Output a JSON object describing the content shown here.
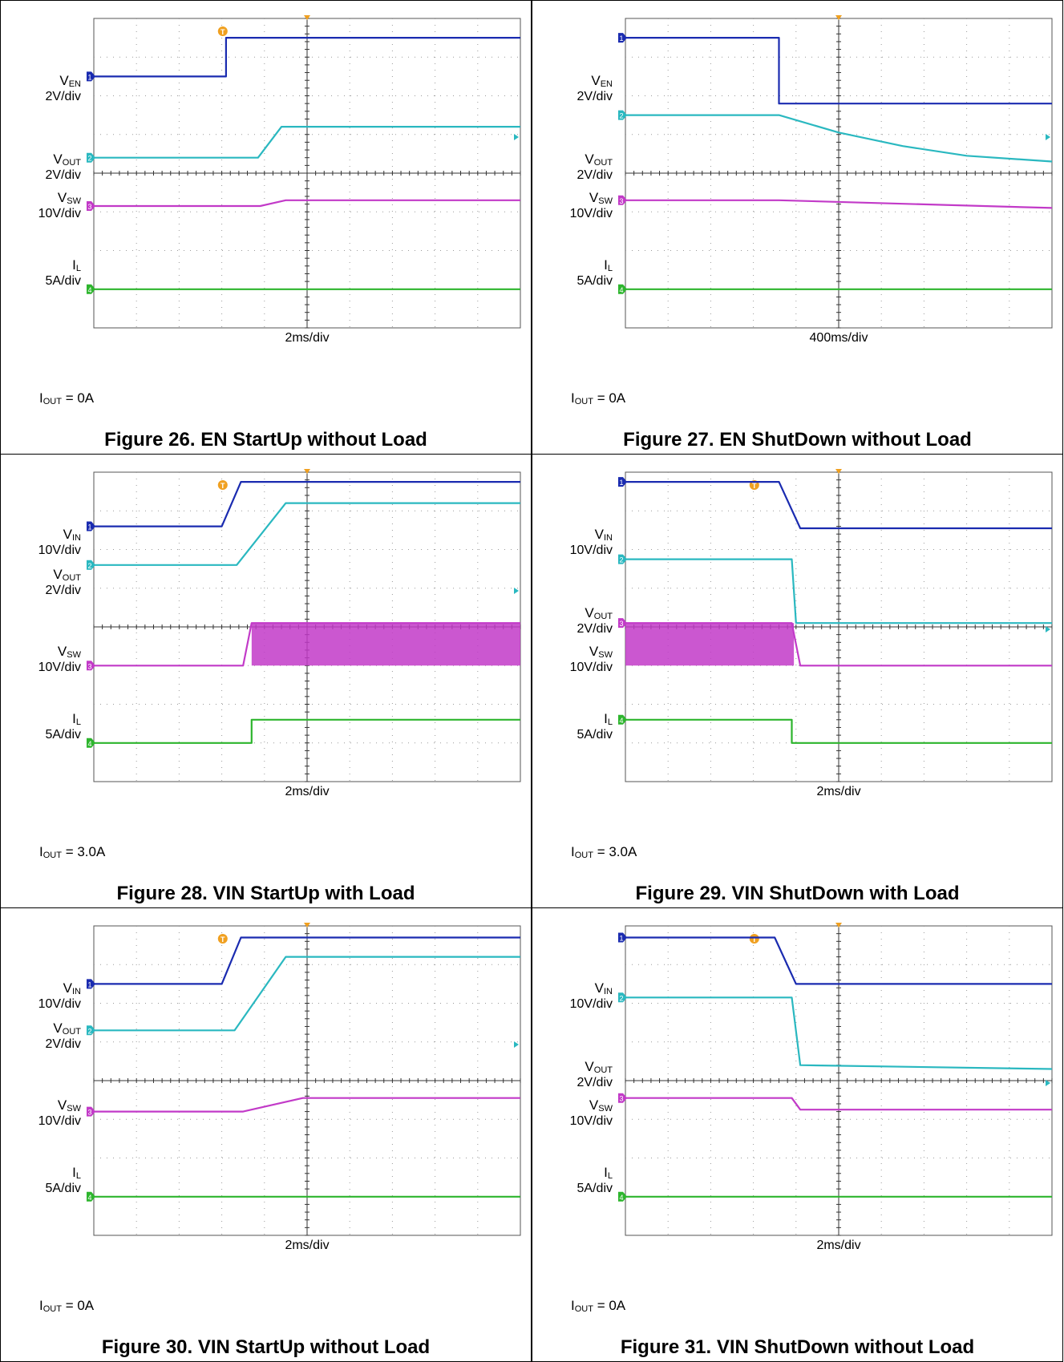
{
  "figures": [
    {
      "caption": "Figure 26. EN StartUp without Load",
      "time_div": "2ms/div",
      "condition": {
        "symbol": "I",
        "sub": "OUT",
        "value": " = 0A"
      },
      "channels": [
        {
          "symbol": "V",
          "sub": "EN",
          "scale": "2V/div",
          "color": "#1a2bb0",
          "marker": "1"
        },
        {
          "symbol": "V",
          "sub": "OUT",
          "scale": "2V/div",
          "color": "#2ab8c0",
          "marker": "2"
        },
        {
          "symbol": "V",
          "sub": "SW",
          "scale": "10V/div",
          "color": "#c23ac8",
          "marker": "3"
        },
        {
          "symbol": "I",
          "sub": "L",
          "scale": "5A/div",
          "color": "#2db52d",
          "marker": "4"
        }
      ]
    },
    {
      "caption": "Figure 27. EN ShutDown without Load",
      "time_div": "400ms/div",
      "condition": {
        "symbol": "I",
        "sub": "OUT",
        "value": " = 0A"
      },
      "channels": [
        {
          "symbol": "V",
          "sub": "EN",
          "scale": "2V/div",
          "color": "#1a2bb0",
          "marker": "1"
        },
        {
          "symbol": "V",
          "sub": "OUT",
          "scale": "2V/div",
          "color": "#2ab8c0",
          "marker": "2"
        },
        {
          "symbol": "V",
          "sub": "SW",
          "scale": "10V/div",
          "color": "#c23ac8",
          "marker": "3"
        },
        {
          "symbol": "I",
          "sub": "L",
          "scale": "5A/div",
          "color": "#2db52d",
          "marker": "4"
        }
      ]
    },
    {
      "caption": "Figure 28. VIN StartUp with Load",
      "time_div": "2ms/div",
      "condition": {
        "symbol": "I",
        "sub": "OUT",
        "value": " = 3.0A"
      },
      "channels": [
        {
          "symbol": "V",
          "sub": "IN",
          "scale": "10V/div",
          "color": "#1a2bb0",
          "marker": "1"
        },
        {
          "symbol": "V",
          "sub": "OUT",
          "scale": "2V/div",
          "color": "#2ab8c0",
          "marker": "2"
        },
        {
          "symbol": "V",
          "sub": "SW",
          "scale": "10V/div",
          "color": "#c23ac8",
          "marker": "3"
        },
        {
          "symbol": "I",
          "sub": "L",
          "scale": "5A/div",
          "color": "#2db52d",
          "marker": "4"
        }
      ]
    },
    {
      "caption": "Figure 29. VIN ShutDown with Load",
      "time_div": "2ms/div",
      "condition": {
        "symbol": "I",
        "sub": "OUT",
        "value": " = 3.0A"
      },
      "channels": [
        {
          "symbol": "V",
          "sub": "IN",
          "scale": "10V/div",
          "color": "#1a2bb0",
          "marker": "1"
        },
        {
          "symbol": "V",
          "sub": "OUT",
          "scale": "2V/div",
          "color": "#2ab8c0",
          "marker": "2"
        },
        {
          "symbol": "V",
          "sub": "SW",
          "scale": "10V/div",
          "color": "#c23ac8",
          "marker": "3"
        },
        {
          "symbol": "I",
          "sub": "L",
          "scale": "5A/div",
          "color": "#2db52d",
          "marker": "4"
        }
      ]
    },
    {
      "caption": "Figure 30. VIN StartUp without Load",
      "time_div": "2ms/div",
      "condition": {
        "symbol": "I",
        "sub": "OUT",
        "value": " = 0A"
      },
      "channels": [
        {
          "symbol": "V",
          "sub": "IN",
          "scale": "10V/div",
          "color": "#1a2bb0",
          "marker": "1"
        },
        {
          "symbol": "V",
          "sub": "OUT",
          "scale": "2V/div",
          "color": "#2ab8c0",
          "marker": "2"
        },
        {
          "symbol": "V",
          "sub": "SW",
          "scale": "10V/div",
          "color": "#c23ac8",
          "marker": "3"
        },
        {
          "symbol": "I",
          "sub": "L",
          "scale": "5A/div",
          "color": "#2db52d",
          "marker": "4"
        }
      ]
    },
    {
      "caption": "Figure 31. VIN ShutDown without Load",
      "time_div": "2ms/div",
      "condition": {
        "symbol": "I",
        "sub": "OUT",
        "value": " = 0A"
      },
      "channels": [
        {
          "symbol": "V",
          "sub": "IN",
          "scale": "10V/div",
          "color": "#1a2bb0",
          "marker": "1"
        },
        {
          "symbol": "V",
          "sub": "OUT",
          "scale": "2V/div",
          "color": "#2ab8c0",
          "marker": "2"
        },
        {
          "symbol": "V",
          "sub": "SW",
          "scale": "10V/div",
          "color": "#c23ac8",
          "marker": "3"
        },
        {
          "symbol": "I",
          "sub": "L",
          "scale": "5A/div",
          "color": "#2db52d",
          "marker": "4"
        }
      ]
    }
  ],
  "chart_data": [
    {
      "type": "line",
      "title": "Figure 26. EN StartUp without Load",
      "xlabel": "2ms/div",
      "x_divisions": 10,
      "y_divisions": 8,
      "grid": true,
      "series": [
        {
          "name": "VEN",
          "points": [
            [
              0,
              6.5
            ],
            [
              3.1,
              6.5
            ],
            [
              3.1,
              7.5
            ],
            [
              10,
              7.5
            ]
          ]
        },
        {
          "name": "VOUT",
          "points": [
            [
              0,
              4.4
            ],
            [
              3.85,
              4.4
            ],
            [
              4.4,
              5.2
            ],
            [
              10,
              5.2
            ]
          ]
        },
        {
          "name": "VSW",
          "points": [
            [
              0,
              3.15
            ],
            [
              3.9,
              3.15
            ],
            [
              4.5,
              3.3
            ],
            [
              10,
              3.3
            ]
          ]
        },
        {
          "name": "IL",
          "points": [
            [
              0,
              1.0
            ],
            [
              10,
              1.0
            ]
          ]
        }
      ]
    },
    {
      "type": "line",
      "title": "Figure 27. EN ShutDown without Load",
      "xlabel": "400ms/div",
      "x_divisions": 10,
      "y_divisions": 8,
      "grid": true,
      "series": [
        {
          "name": "VEN",
          "points": [
            [
              0,
              7.5
            ],
            [
              3.6,
              7.5
            ],
            [
              3.6,
              5.8
            ],
            [
              10,
              5.8
            ]
          ]
        },
        {
          "name": "VOUT",
          "points": [
            [
              0,
              5.5
            ],
            [
              3.6,
              5.5
            ],
            [
              5,
              5.05
            ],
            [
              6.5,
              4.7
            ],
            [
              8,
              4.45
            ],
            [
              10,
              4.3
            ]
          ]
        },
        {
          "name": "VSW",
          "points": [
            [
              0,
              3.3
            ],
            [
              3.6,
              3.3
            ],
            [
              10,
              3.1
            ]
          ]
        },
        {
          "name": "IL",
          "points": [
            [
              0,
              1.0
            ],
            [
              10,
              1.0
            ]
          ]
        }
      ]
    },
    {
      "type": "line",
      "title": "Figure 28. VIN StartUp with Load",
      "xlabel": "2ms/div",
      "x_divisions": 10,
      "y_divisions": 8,
      "grid": true,
      "series": [
        {
          "name": "VIN",
          "points": [
            [
              0,
              6.6
            ],
            [
              3.0,
              6.6
            ],
            [
              3.45,
              7.75
            ],
            [
              10,
              7.75
            ]
          ]
        },
        {
          "name": "VOUT",
          "points": [
            [
              0,
              5.6
            ],
            [
              3.35,
              5.6
            ],
            [
              4.5,
              7.2
            ],
            [
              10,
              7.2
            ]
          ]
        },
        {
          "name": "VSW",
          "points": [
            [
              0,
              3.0
            ],
            [
              3.5,
              3.0
            ],
            [
              3.7,
              4.1
            ],
            [
              10,
              4.1
            ]
          ]
        },
        {
          "name": "IL",
          "points": [
            [
              0,
              1.0
            ],
            [
              3.7,
              1.0
            ],
            [
              3.7,
              1.6
            ],
            [
              10,
              1.6
            ]
          ]
        }
      ]
    },
    {
      "type": "line",
      "title": "Figure 29. VIN ShutDown with Load",
      "xlabel": "2ms/div",
      "x_divisions": 10,
      "y_divisions": 8,
      "grid": true,
      "series": [
        {
          "name": "VIN",
          "points": [
            [
              0,
              7.75
            ],
            [
              3.6,
              7.75
            ],
            [
              4.1,
              6.55
            ],
            [
              10,
              6.55
            ]
          ]
        },
        {
          "name": "VOUT",
          "points": [
            [
              0,
              5.75
            ],
            [
              3.9,
              5.75
            ],
            [
              4.0,
              4.1
            ],
            [
              10,
              4.1
            ]
          ]
        },
        {
          "name": "VSW",
          "points": [
            [
              0,
              4.1
            ],
            [
              3.9,
              4.1
            ],
            [
              4.1,
              3.0
            ],
            [
              10,
              3.0
            ]
          ]
        },
        {
          "name": "IL",
          "points": [
            [
              0,
              1.6
            ],
            [
              3.9,
              1.6
            ],
            [
              3.9,
              1.0
            ],
            [
              10,
              1.0
            ]
          ]
        }
      ]
    },
    {
      "type": "line",
      "title": "Figure 30. VIN StartUp without Load",
      "xlabel": "2ms/div",
      "x_divisions": 10,
      "y_divisions": 8,
      "grid": true,
      "series": [
        {
          "name": "VIN",
          "points": [
            [
              0,
              6.5
            ],
            [
              3.0,
              6.5
            ],
            [
              3.45,
              7.7
            ],
            [
              10,
              7.7
            ]
          ]
        },
        {
          "name": "VOUT",
          "points": [
            [
              0,
              5.3
            ],
            [
              3.3,
              5.3
            ],
            [
              4.5,
              7.2
            ],
            [
              10,
              7.2
            ]
          ]
        },
        {
          "name": "VSW",
          "points": [
            [
              0,
              3.2
            ],
            [
              3.5,
              3.2
            ],
            [
              4.9,
              3.55
            ],
            [
              10,
              3.55
            ]
          ]
        },
        {
          "name": "IL",
          "points": [
            [
              0,
              1.0
            ],
            [
              10,
              1.0
            ]
          ]
        }
      ]
    },
    {
      "type": "line",
      "title": "Figure 31. VIN ShutDown without Load",
      "xlabel": "2ms/div",
      "x_divisions": 10,
      "y_divisions": 8,
      "grid": true,
      "series": [
        {
          "name": "VIN",
          "points": [
            [
              0,
              7.7
            ],
            [
              3.5,
              7.7
            ],
            [
              4.0,
              6.5
            ],
            [
              10,
              6.5
            ]
          ]
        },
        {
          "name": "VOUT",
          "points": [
            [
              0,
              6.15
            ],
            [
              3.9,
              6.15
            ],
            [
              4.1,
              4.4
            ],
            [
              10,
              4.3
            ]
          ]
        },
        {
          "name": "VSW",
          "points": [
            [
              0,
              3.55
            ],
            [
              3.9,
              3.55
            ],
            [
              4.1,
              3.25
            ],
            [
              10,
              3.25
            ]
          ]
        },
        {
          "name": "IL",
          "points": [
            [
              0,
              1.0
            ],
            [
              10,
              1.0
            ]
          ]
        }
      ]
    }
  ]
}
